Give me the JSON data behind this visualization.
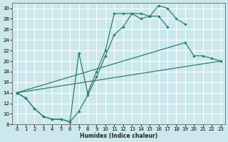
{
  "xlabel": "Humidex (Indice chaleur)",
  "bg_color": "#cce8ec",
  "grid_color": "#ffffff",
  "line_color": "#2e7d6e",
  "xlim": [
    -0.5,
    23.5
  ],
  "ylim": [
    8,
    31
  ],
  "xticks": [
    0,
    1,
    2,
    3,
    4,
    5,
    6,
    7,
    8,
    9,
    10,
    11,
    12,
    13,
    14,
    15,
    16,
    17,
    18,
    19,
    20,
    21,
    22,
    23
  ],
  "yticks": [
    8,
    10,
    12,
    14,
    16,
    18,
    20,
    22,
    24,
    26,
    28,
    30
  ],
  "curve1_x": [
    0,
    1,
    2,
    3,
    4,
    5,
    6,
    7,
    8,
    9,
    10,
    11,
    12,
    13,
    14,
    15,
    16,
    17,
    18,
    19
  ],
  "curve1_y": [
    14,
    13,
    11,
    9.5,
    9,
    9,
    8.5,
    21.5,
    14,
    18,
    22,
    29,
    29,
    29,
    29,
    28.5,
    30.5,
    30,
    28,
    27
  ],
  "curve2_x": [
    0,
    1,
    2,
    3,
    4,
    5,
    6,
    7,
    8,
    9,
    10,
    11,
    12,
    13,
    14,
    15,
    16,
    17
  ],
  "curve2_y": [
    14,
    13,
    11,
    9.5,
    9,
    9,
    8.5,
    10.5,
    13.5,
    17,
    21,
    25,
    26.5,
    29,
    28,
    28.5,
    28.5,
    26.5
  ],
  "curve3_x": [
    0,
    23
  ],
  "curve3_y": [
    14,
    20
  ],
  "curve4_x": [
    0,
    19,
    20,
    21,
    22,
    23
  ],
  "curve4_y": [
    14,
    23.5,
    21,
    21,
    20.5,
    20
  ]
}
